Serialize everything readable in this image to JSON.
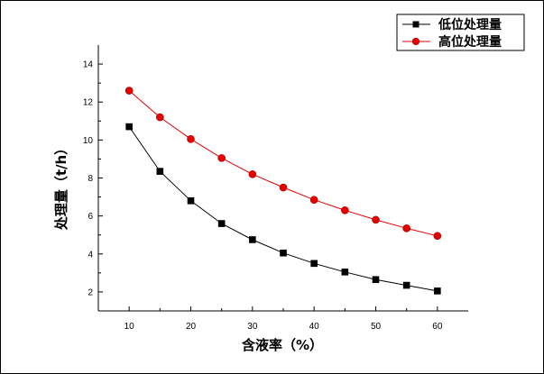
{
  "chart_data": {
    "type": "line",
    "xlabel": "含液率（%）",
    "ylabel": "处理量（t/h）",
    "xlim": [
      5,
      65
    ],
    "ylim": [
      1,
      15
    ],
    "xticks": [
      10,
      20,
      30,
      40,
      50,
      60
    ],
    "yticks": [
      2,
      4,
      6,
      8,
      10,
      12,
      14
    ],
    "x": [
      10,
      15,
      20,
      25,
      30,
      35,
      40,
      45,
      50,
      55,
      60
    ],
    "grid": false,
    "legend_position": "top-right",
    "series": [
      {
        "name": "低位处理量",
        "color": "#000000",
        "marker": "square",
        "values": [
          10.7,
          8.35,
          6.8,
          5.6,
          4.75,
          4.05,
          3.5,
          3.05,
          2.65,
          2.35,
          2.05
        ]
      },
      {
        "name": "高位处理量",
        "color": "#e60000",
        "marker": "circle",
        "values": [
          12.6,
          11.2,
          10.05,
          9.05,
          8.2,
          7.5,
          6.85,
          6.3,
          5.8,
          5.35,
          4.95
        ]
      }
    ]
  }
}
